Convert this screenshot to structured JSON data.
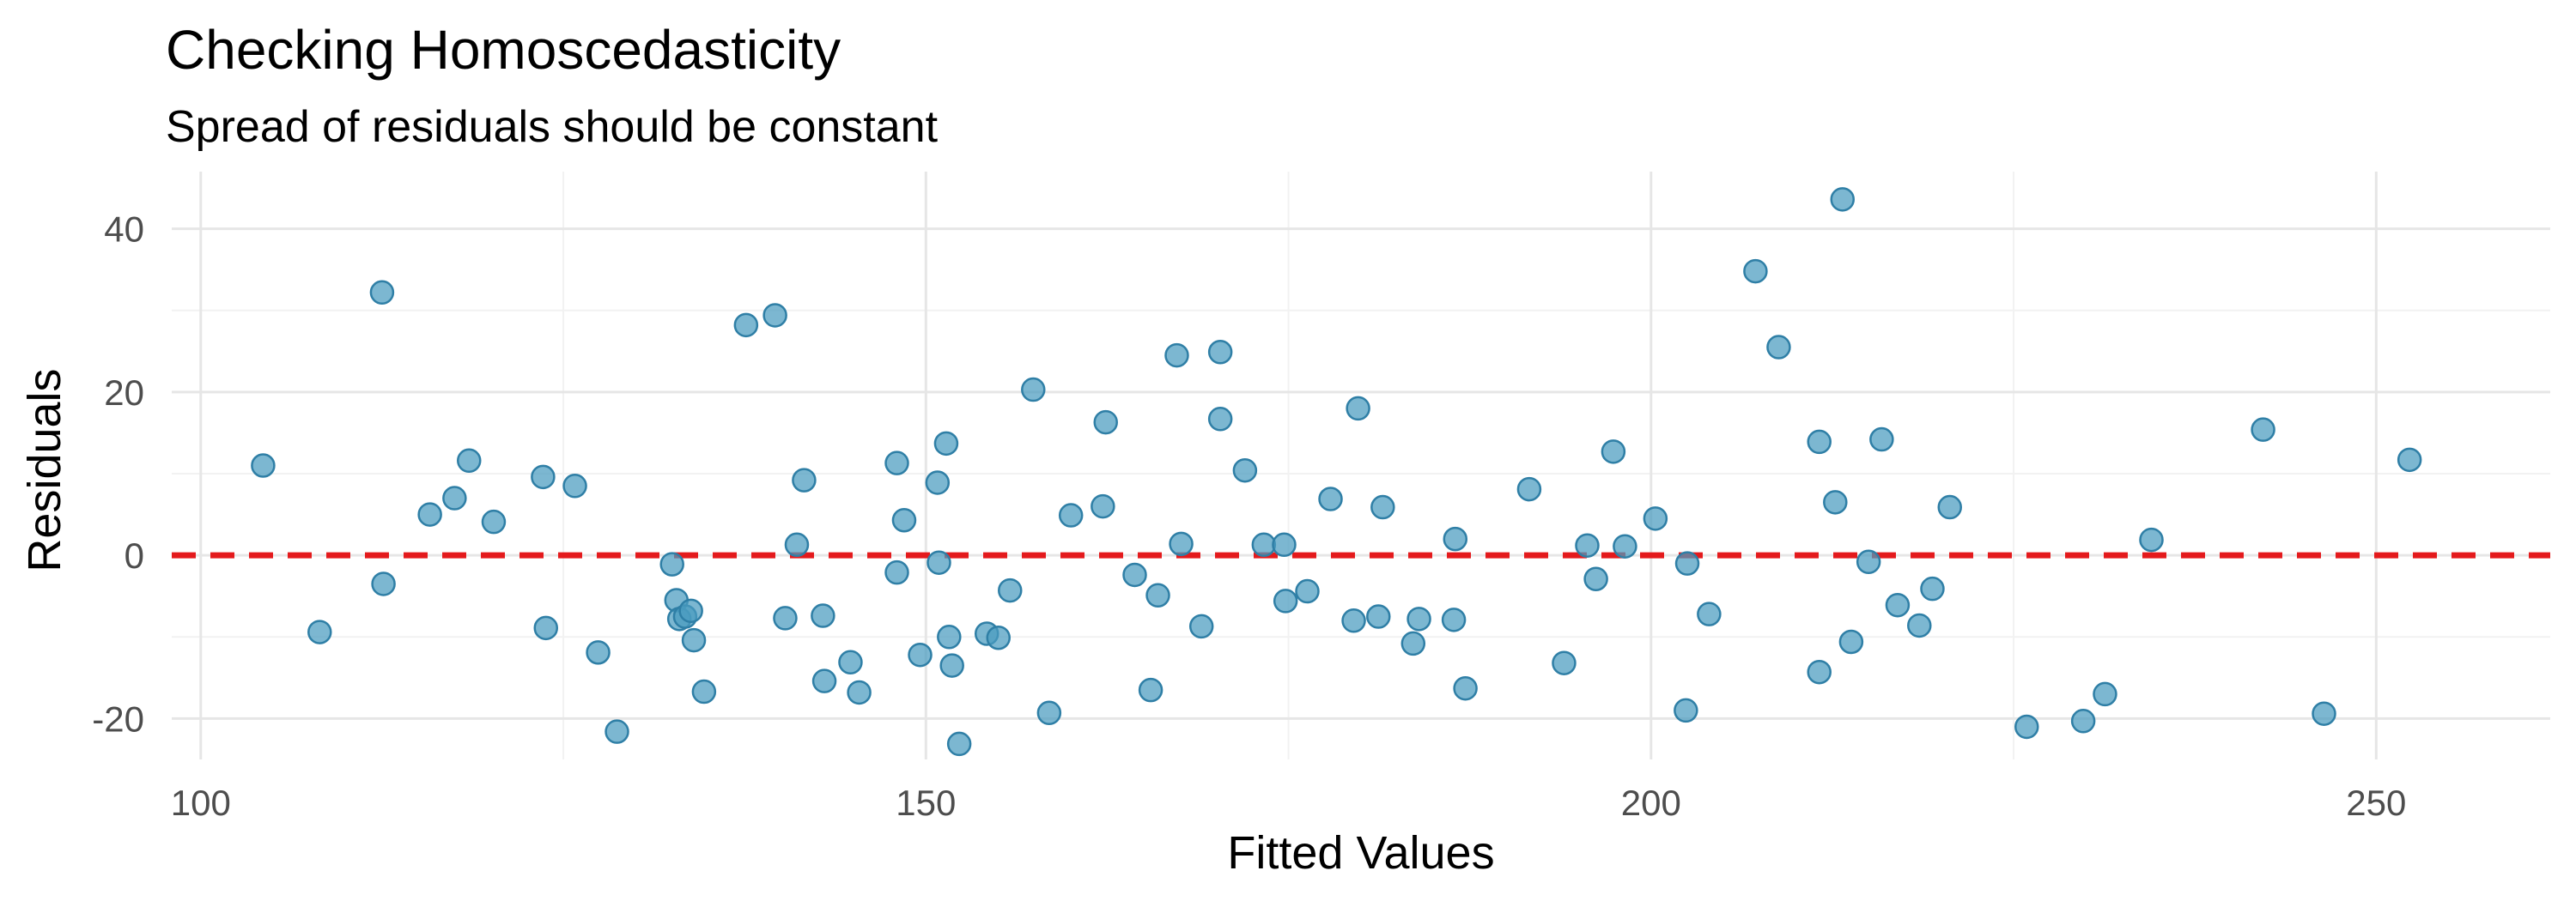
{
  "chart_data": {
    "type": "scatter",
    "title": "Checking Homoscedasticity",
    "subtitle": "Spread of residuals should be constant",
    "xlabel": "Fitted Values",
    "ylabel": "Residuals",
    "xlim": [
      98,
      262
    ],
    "ylim": [
      -25,
      47
    ],
    "x_ticks": [
      100,
      150,
      200,
      250
    ],
    "y_ticks": [
      -20,
      0,
      20,
      40
    ],
    "x_tick_labels": [
      "100",
      "150",
      "200",
      "250"
    ],
    "y_tick_labels": [
      "-20",
      "0",
      "20",
      "40"
    ],
    "x_minor_ticks": [
      125,
      175,
      225
    ],
    "y_minor_ticks": [
      -10,
      10,
      30
    ],
    "grid": true,
    "reference_line": {
      "y": 0,
      "color": "#e41a1c",
      "style": "dashed"
    },
    "point_color": "#4a9bbf",
    "point_stroke": "#2f7fa6",
    "points": [
      {
        "x": 104.3,
        "y": 11.0
      },
      {
        "x": 108.2,
        "y": -9.4
      },
      {
        "x": 112.5,
        "y": 32.2
      },
      {
        "x": 112.6,
        "y": -3.5
      },
      {
        "x": 115.8,
        "y": 5.0
      },
      {
        "x": 117.5,
        "y": 7.0
      },
      {
        "x": 118.5,
        "y": 11.6
      },
      {
        "x": 120.2,
        "y": 4.1
      },
      {
        "x": 123.6,
        "y": 9.6
      },
      {
        "x": 123.8,
        "y": -8.9
      },
      {
        "x": 125.8,
        "y": 8.5
      },
      {
        "x": 127.4,
        "y": -11.9
      },
      {
        "x": 128.7,
        "y": -21.6
      },
      {
        "x": 132.5,
        "y": -1.1
      },
      {
        "x": 132.8,
        "y": -5.5
      },
      {
        "x": 133.0,
        "y": -7.8
      },
      {
        "x": 133.4,
        "y": -7.5
      },
      {
        "x": 133.8,
        "y": -6.8
      },
      {
        "x": 134.0,
        "y": -10.4
      },
      {
        "x": 134.7,
        "y": -16.7
      },
      {
        "x": 137.6,
        "y": 28.2
      },
      {
        "x": 139.6,
        "y": 29.4
      },
      {
        "x": 140.3,
        "y": -7.7
      },
      {
        "x": 141.1,
        "y": 1.3
      },
      {
        "x": 141.6,
        "y": 9.2
      },
      {
        "x": 142.9,
        "y": -7.4
      },
      {
        "x": 143.0,
        "y": -15.4
      },
      {
        "x": 144.8,
        "y": -13.1
      },
      {
        "x": 145.4,
        "y": -16.8
      },
      {
        "x": 148.0,
        "y": 11.3
      },
      {
        "x": 148.0,
        "y": -2.1
      },
      {
        "x": 148.5,
        "y": 4.3
      },
      {
        "x": 149.6,
        "y": -12.2
      },
      {
        "x": 150.8,
        "y": 8.9
      },
      {
        "x": 150.9,
        "y": -0.9
      },
      {
        "x": 151.4,
        "y": 13.7
      },
      {
        "x": 151.6,
        "y": -10.0
      },
      {
        "x": 151.8,
        "y": -13.5
      },
      {
        "x": 152.3,
        "y": -23.1
      },
      {
        "x": 154.2,
        "y": -9.6
      },
      {
        "x": 155.0,
        "y": -10.1
      },
      {
        "x": 155.8,
        "y": -4.3
      },
      {
        "x": 157.4,
        "y": 20.3
      },
      {
        "x": 158.5,
        "y": -19.3
      },
      {
        "x": 160.0,
        "y": 4.9
      },
      {
        "x": 162.2,
        "y": 6.0
      },
      {
        "x": 162.4,
        "y": 16.3
      },
      {
        "x": 164.4,
        "y": -2.4
      },
      {
        "x": 165.5,
        "y": -16.5
      },
      {
        "x": 166.0,
        "y": -4.9
      },
      {
        "x": 167.3,
        "y": 24.5
      },
      {
        "x": 167.6,
        "y": 1.4
      },
      {
        "x": 169.0,
        "y": -8.7
      },
      {
        "x": 170.3,
        "y": 24.9
      },
      {
        "x": 170.3,
        "y": 16.7
      },
      {
        "x": 172.0,
        "y": 10.4
      },
      {
        "x": 173.3,
        "y": 1.3
      },
      {
        "x": 174.7,
        "y": 1.3
      },
      {
        "x": 174.8,
        "y": -5.6
      },
      {
        "x": 176.3,
        "y": -4.4
      },
      {
        "x": 177.9,
        "y": 6.9
      },
      {
        "x": 179.5,
        "y": -8.0
      },
      {
        "x": 179.8,
        "y": 18.0
      },
      {
        "x": 181.2,
        "y": -7.5
      },
      {
        "x": 181.5,
        "y": 5.9
      },
      {
        "x": 183.6,
        "y": -10.8
      },
      {
        "x": 184.0,
        "y": -7.8
      },
      {
        "x": 186.4,
        "y": -7.9
      },
      {
        "x": 186.5,
        "y": 2.0
      },
      {
        "x": 187.2,
        "y": -16.3
      },
      {
        "x": 191.6,
        "y": 8.1
      },
      {
        "x": 194.0,
        "y": -13.2
      },
      {
        "x": 195.6,
        "y": 1.2
      },
      {
        "x": 196.2,
        "y": -2.9
      },
      {
        "x": 197.4,
        "y": 12.7
      },
      {
        "x": 198.2,
        "y": 1.1
      },
      {
        "x": 200.3,
        "y": 4.5
      },
      {
        "x": 202.4,
        "y": -19.0
      },
      {
        "x": 202.5,
        "y": -1.0
      },
      {
        "x": 204.0,
        "y": -7.2
      },
      {
        "x": 207.2,
        "y": 34.8
      },
      {
        "x": 208.8,
        "y": 25.5
      },
      {
        "x": 211.6,
        "y": 13.9
      },
      {
        "x": 211.6,
        "y": -14.3
      },
      {
        "x": 212.7,
        "y": 6.5
      },
      {
        "x": 213.2,
        "y": 43.6
      },
      {
        "x": 213.8,
        "y": -10.6
      },
      {
        "x": 215.0,
        "y": -0.8
      },
      {
        "x": 215.9,
        "y": 14.2
      },
      {
        "x": 217.0,
        "y": -6.1
      },
      {
        "x": 218.5,
        "y": -8.6
      },
      {
        "x": 219.4,
        "y": -4.1
      },
      {
        "x": 220.6,
        "y": 5.9
      },
      {
        "x": 225.9,
        "y": -21.0
      },
      {
        "x": 229.8,
        "y": -20.3
      },
      {
        "x": 231.3,
        "y": -17.0
      },
      {
        "x": 234.5,
        "y": 1.9
      },
      {
        "x": 242.2,
        "y": 15.4
      },
      {
        "x": 246.4,
        "y": -19.4
      },
      {
        "x": 252.3,
        "y": 11.7
      }
    ]
  }
}
